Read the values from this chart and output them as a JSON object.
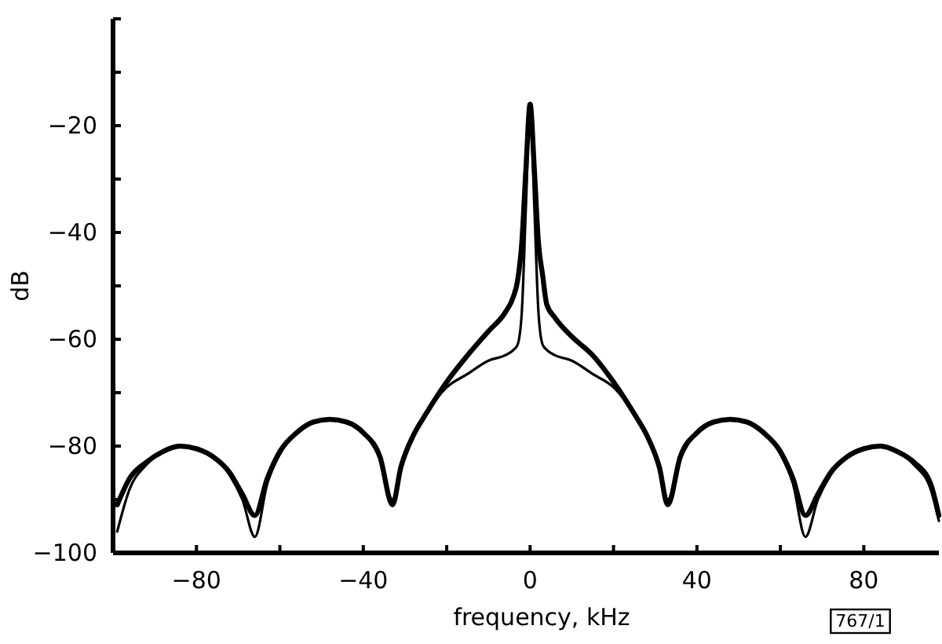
{
  "chart_data": {
    "type": "line",
    "xlabel": "frequency, kHz",
    "ylabel": "dB",
    "annotations": [
      "767/1"
    ],
    "xlim": [
      -100,
      98
    ],
    "ylim": [
      -100,
      0
    ],
    "xticks": [
      -80,
      {
        "value": -60,
        "label": null
      },
      -40,
      {
        "value": -20,
        "label": null
      },
      0,
      {
        "value": 20,
        "label": null
      },
      40,
      {
        "value": 60,
        "label": null
      },
      80
    ],
    "yticks": [
      -100,
      {
        "value": -90,
        "label": null
      },
      -80,
      {
        "value": -70,
        "label": null
      },
      -60,
      {
        "value": -50,
        "label": null
      },
      -40,
      {
        "value": -30,
        "label": null
      },
      -20,
      {
        "value": -10,
        "label": null
      },
      {
        "value": 0,
        "label": null
      }
    ],
    "grid": false,
    "marker": "none",
    "line_style": "solid",
    "series": [
      {
        "color": "#000000",
        "x": [
          -99,
          -96,
          -92,
          -88,
          -84,
          -80,
          -76,
          -72,
          -69,
          -66,
          -63,
          -60,
          -56,
          -52,
          -48,
          -44,
          -40,
          -36,
          -33,
          -31,
          -28,
          -25,
          -20,
          -15,
          -10,
          -6,
          -4,
          -3,
          -2,
          -1,
          0,
          1,
          2,
          3,
          4,
          6,
          10,
          15,
          20,
          25,
          28,
          31,
          33,
          36,
          40,
          44,
          48,
          52,
          56,
          60,
          63,
          66,
          69,
          72,
          76,
          80,
          84,
          88,
          92,
          96,
          98
        ],
        "values": [
          -91,
          -86,
          -83,
          -81,
          -80,
          -80.5,
          -82,
          -85,
          -89,
          -93,
          -86,
          -81,
          -77.5,
          -75.5,
          -75,
          -75.5,
          -77.5,
          -82,
          -91,
          -84,
          -78,
          -74,
          -68,
          -63,
          -58.5,
          -55,
          -52,
          -49,
          -42,
          -28,
          -16,
          -28,
          -42,
          -48,
          -53.5,
          -56,
          -59.5,
          -63,
          -68,
          -74,
          -78,
          -84,
          -91,
          -82,
          -77.5,
          -75.5,
          -75,
          -75.5,
          -77.5,
          -81,
          -86,
          -93,
          -89,
          -85,
          -82,
          -80.5,
          -80,
          -81,
          -83,
          -87,
          -93
        ]
      },
      {
        "color": "#000000",
        "x": [
          -99,
          -96,
          -92,
          -88,
          -84,
          -80,
          -76,
          -72,
          -69,
          -66,
          -63,
          -60,
          -56,
          -52,
          -48,
          -44,
          -40,
          -36,
          -33,
          -31,
          -28,
          -25,
          -20,
          -15,
          -10,
          -6,
          -4,
          -3,
          -2,
          -1,
          0,
          1,
          2,
          3,
          4,
          6,
          10,
          15,
          20,
          25,
          28,
          31,
          33,
          36,
          40,
          44,
          48,
          52,
          56,
          60,
          63,
          66,
          69,
          72,
          76,
          80,
          84,
          88,
          92,
          96,
          98
        ],
        "values": [
          -96,
          -88,
          -83.5,
          -81,
          -80,
          -80.5,
          -82,
          -85.5,
          -90,
          -97,
          -87,
          -81.5,
          -77.5,
          -75.5,
          -75,
          -75.5,
          -77.5,
          -82.5,
          -90,
          -84,
          -78,
          -74,
          -69,
          -66.5,
          -64,
          -63,
          -62,
          -61,
          -55,
          -35,
          -16,
          -35,
          -55,
          -61,
          -62,
          -63,
          -64,
          -66.5,
          -69,
          -74,
          -78,
          -84,
          -90,
          -82.5,
          -77.5,
          -75.5,
          -75,
          -75.5,
          -77.5,
          -81.5,
          -87,
          -97,
          -90,
          -85.5,
          -82,
          -80.5,
          -80,
          -81,
          -83.5,
          -88,
          -94
        ]
      }
    ]
  }
}
